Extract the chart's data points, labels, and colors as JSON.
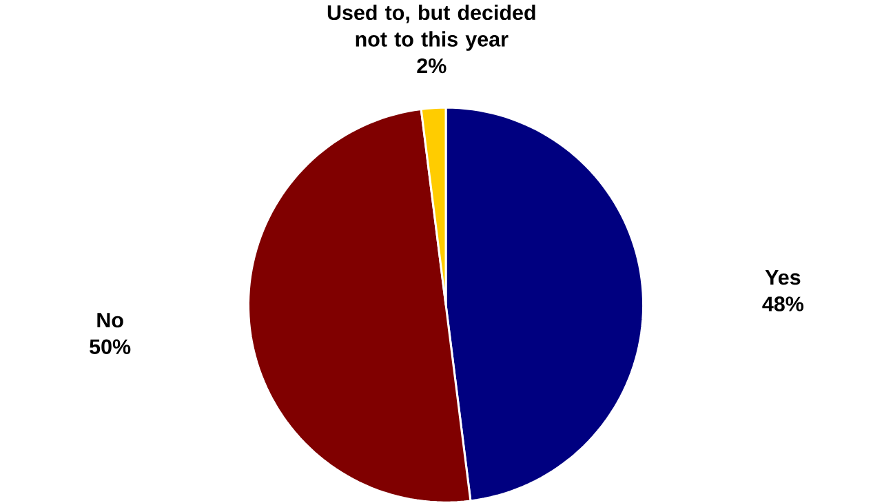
{
  "chart_data": {
    "type": "pie",
    "categories": [
      "Yes",
      "No",
      "Used to, but decided not to this year"
    ],
    "values": [
      48,
      50,
      2
    ],
    "colors": [
      "#000080",
      "#800000",
      "#ffcc00"
    ],
    "value_labels": [
      "48%",
      "50%",
      "2%"
    ]
  }
}
